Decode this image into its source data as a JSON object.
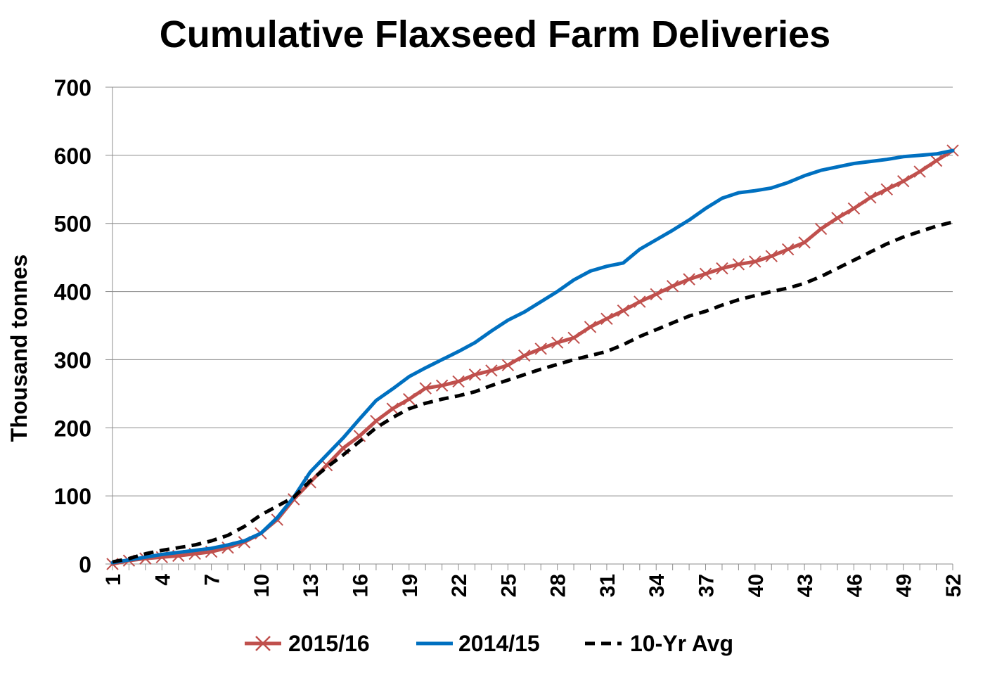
{
  "chart_data": {
    "type": "line",
    "title": "Cumulative Flaxseed Farm Deliveries",
    "xlabel": "",
    "ylabel": "Thousand tonnes",
    "ylim": [
      0,
      700
    ],
    "yticks": [
      "0",
      "100",
      "200",
      "300",
      "400",
      "500",
      "600",
      "700"
    ],
    "xticks": [
      "1",
      "4",
      "7",
      "10",
      "13",
      "16",
      "19",
      "22",
      "25",
      "28",
      "31",
      "34",
      "37",
      "40",
      "43",
      "46",
      "49",
      "52"
    ],
    "x": [
      1,
      2,
      3,
      4,
      5,
      6,
      7,
      8,
      9,
      10,
      11,
      12,
      13,
      14,
      15,
      16,
      17,
      18,
      19,
      20,
      21,
      22,
      23,
      24,
      25,
      26,
      27,
      28,
      29,
      30,
      31,
      32,
      33,
      34,
      35,
      36,
      37,
      38,
      39,
      40,
      41,
      42,
      43,
      44,
      45,
      46,
      47,
      48,
      49,
      50,
      51,
      52
    ],
    "grid": "horizontal",
    "legend_position": "bottom",
    "series": [
      {
        "name": "2015/16",
        "color": "#c0504d",
        "style": "solid-x-markers",
        "values": [
          0,
          5,
          8,
          10,
          12,
          15,
          18,
          24,
          32,
          45,
          65,
          95,
          120,
          145,
          170,
          188,
          210,
          228,
          242,
          258,
          262,
          268,
          278,
          284,
          292,
          306,
          316,
          325,
          332,
          348,
          360,
          372,
          385,
          396,
          408,
          418,
          426,
          434,
          440,
          444,
          452,
          462,
          472,
          492,
          508,
          522,
          538,
          550,
          562,
          576,
          592,
          607
        ]
      },
      {
        "name": "2014/15",
        "color": "#0070c0",
        "style": "solid",
        "values": [
          2,
          6,
          10,
          14,
          17,
          20,
          23,
          28,
          34,
          45,
          68,
          98,
          135,
          160,
          185,
          213,
          240,
          257,
          275,
          288,
          300,
          312,
          325,
          342,
          358,
          370,
          385,
          400,
          417,
          430,
          437,
          442,
          462,
          476,
          490,
          505,
          522,
          537,
          545,
          548,
          552,
          560,
          570,
          578,
          583,
          588,
          591,
          594,
          598,
          600,
          602,
          607
        ]
      },
      {
        "name": "10-Yr Avg",
        "color": "#000000",
        "style": "dashed",
        "values": [
          3,
          8,
          15,
          20,
          24,
          28,
          34,
          42,
          55,
          72,
          85,
          98,
          122,
          142,
          160,
          180,
          200,
          215,
          228,
          236,
          242,
          247,
          253,
          262,
          270,
          278,
          286,
          293,
          300,
          306,
          312,
          322,
          334,
          344,
          354,
          364,
          371,
          380,
          388,
          394,
          400,
          405,
          412,
          422,
          434,
          446,
          458,
          470,
          480,
          488,
          496,
          502
        ]
      }
    ]
  }
}
